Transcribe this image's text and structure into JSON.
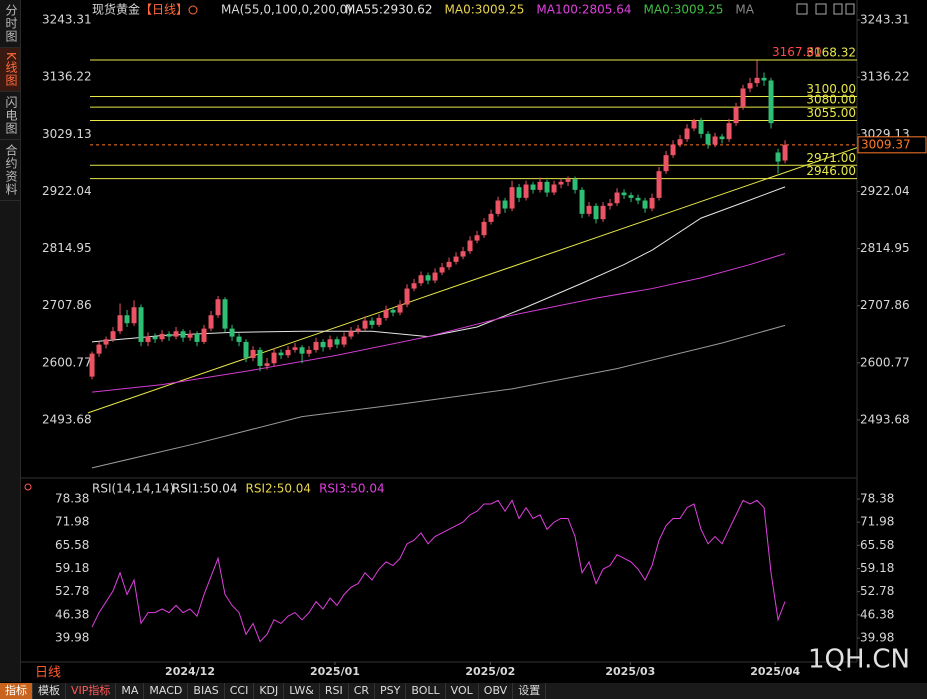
{
  "sidebar": [
    "分时图",
    "K线图",
    "闪电图",
    "合约资料"
  ],
  "toolbar": [
    "指标",
    "模板",
    "VIP指标",
    "MA",
    "MACD",
    "BIAS",
    "CCI",
    "KDJ",
    "LW&",
    "RSI",
    "CR",
    "PSY",
    "BOLL",
    "VOL",
    "OBV",
    "设置"
  ],
  "footer": {
    "period": "日线",
    "watermark": "1QH.CN"
  },
  "chart_data": [
    {
      "type": "candlestick",
      "title": "现货黄金",
      "period": "【日线】",
      "indicator": "MA(55,0,100,0,200,0)",
      "legend": [
        {
          "name": "MA55:2930.62",
          "color": "#e6e6e6"
        },
        {
          "name": "MA0:3009.25",
          "color": "#e8d44d"
        },
        {
          "name": "MA100:2805.64",
          "color": "#e040e0"
        },
        {
          "name": "MA0:3009.25",
          "color": "#3fbf3f"
        },
        {
          "name": "MA",
          "color": "#888888"
        }
      ],
      "up_color": "#ec5466",
      "down_color": "#2fbf74",
      "xlim": [
        -10.29,
        109.28
      ],
      "xticks": [
        {
          "value": 14.0,
          "label": "2024/12"
        },
        {
          "value": 34.7,
          "label": "2025/01"
        },
        {
          "value": 56.9,
          "label": "2025/02"
        },
        {
          "value": 76.9,
          "label": "2025/03"
        },
        {
          "value": 97.6,
          "label": "2025/04"
        }
      ],
      "ylim": [
        2390.6,
        3280.8
      ],
      "yticks": [
        3243.31,
        3136.22,
        3029.13,
        2922.04,
        2814.95,
        2707.86,
        2600.77,
        2493.68
      ],
      "candles": [
        [
          2575,
          2622,
          2570,
          2618
        ],
        [
          2618,
          2640,
          2612,
          2635
        ],
        [
          2635,
          2650,
          2628,
          2645
        ],
        [
          2645,
          2668,
          2640,
          2660
        ],
        [
          2660,
          2712,
          2655,
          2690
        ],
        [
          2690,
          2700,
          2668,
          2675
        ],
        [
          2675,
          2718,
          2670,
          2705
        ],
        [
          2705,
          2710,
          2632,
          2640
        ],
        [
          2640,
          2658,
          2632,
          2650
        ],
        [
          2650,
          2656,
          2638,
          2645
        ],
        [
          2645,
          2662,
          2640,
          2655
        ],
        [
          2655,
          2660,
          2642,
          2650
        ],
        [
          2650,
          2668,
          2645,
          2660
        ],
        [
          2660,
          2664,
          2640,
          2648
        ],
        [
          2648,
          2662,
          2642,
          2655
        ],
        [
          2655,
          2660,
          2632,
          2640
        ],
        [
          2640,
          2672,
          2636,
          2665
        ],
        [
          2665,
          2698,
          2660,
          2690
        ],
        [
          2690,
          2726,
          2685,
          2720
        ],
        [
          2720,
          2724,
          2658,
          2665
        ],
        [
          2665,
          2672,
          2642,
          2650
        ],
        [
          2650,
          2656,
          2632,
          2640
        ],
        [
          2640,
          2645,
          2602,
          2610
        ],
        [
          2610,
          2632,
          2604,
          2625
        ],
        [
          2625,
          2630,
          2585,
          2595
        ],
        [
          2595,
          2610,
          2588,
          2600
        ],
        [
          2600,
          2628,
          2594,
          2620
        ],
        [
          2620,
          2626,
          2608,
          2615
        ],
        [
          2615,
          2632,
          2610,
          2625
        ],
        [
          2625,
          2638,
          2620,
          2630
        ],
        [
          2630,
          2634,
          2600,
          2618
        ],
        [
          2618,
          2632,
          2612,
          2625
        ],
        [
          2625,
          2648,
          2620,
          2640
        ],
        [
          2640,
          2645,
          2622,
          2630
        ],
        [
          2630,
          2652,
          2625,
          2645
        ],
        [
          2645,
          2650,
          2628,
          2635
        ],
        [
          2635,
          2658,
          2630,
          2650
        ],
        [
          2650,
          2668,
          2645,
          2660
        ],
        [
          2660,
          2672,
          2655,
          2665
        ],
        [
          2665,
          2688,
          2660,
          2680
        ],
        [
          2680,
          2686,
          2665,
          2672
        ],
        [
          2672,
          2692,
          2668,
          2685
        ],
        [
          2685,
          2708,
          2680,
          2700
        ],
        [
          2700,
          2704,
          2688,
          2695
        ],
        [
          2695,
          2718,
          2690,
          2710
        ],
        [
          2710,
          2748,
          2705,
          2740
        ],
        [
          2740,
          2758,
          2735,
          2750
        ],
        [
          2750,
          2772,
          2745,
          2765
        ],
        [
          2765,
          2770,
          2748,
          2755
        ],
        [
          2755,
          2778,
          2750,
          2770
        ],
        [
          2770,
          2788,
          2765,
          2780
        ],
        [
          2780,
          2798,
          2775,
          2790
        ],
        [
          2790,
          2808,
          2785,
          2800
        ],
        [
          2800,
          2818,
          2795,
          2810
        ],
        [
          2810,
          2838,
          2805,
          2830
        ],
        [
          2830,
          2848,
          2825,
          2840
        ],
        [
          2840,
          2872,
          2835,
          2865
        ],
        [
          2865,
          2888,
          2860,
          2880
        ],
        [
          2880,
          2912,
          2875,
          2905
        ],
        [
          2905,
          2910,
          2882,
          2890
        ],
        [
          2890,
          2942,
          2885,
          2930
        ],
        [
          2930,
          2936,
          2902,
          2910
        ],
        [
          2910,
          2942,
          2905,
          2935
        ],
        [
          2935,
          2940,
          2918,
          2925
        ],
        [
          2925,
          2948,
          2920,
          2940
        ],
        [
          2940,
          2944,
          2912,
          2920
        ],
        [
          2920,
          2942,
          2915,
          2935
        ],
        [
          2935,
          2946,
          2928,
          2940
        ],
        [
          2940,
          2950,
          2932,
          2945
        ],
        [
          2945,
          2950,
          2918,
          2925
        ],
        [
          2925,
          2930,
          2872,
          2880
        ],
        [
          2880,
          2902,
          2875,
          2895
        ],
        [
          2895,
          2900,
          2862,
          2870
        ],
        [
          2870,
          2902,
          2865,
          2895
        ],
        [
          2895,
          2908,
          2888,
          2900
        ],
        [
          2900,
          2928,
          2895,
          2920
        ],
        [
          2920,
          2926,
          2908,
          2915
        ],
        [
          2915,
          2920,
          2902,
          2910
        ],
        [
          2910,
          2916,
          2898,
          2905
        ],
        [
          2905,
          2910,
          2882,
          2890
        ],
        [
          2890,
          2918,
          2885,
          2910
        ],
        [
          2910,
          2968,
          2905,
          2960
        ],
        [
          2960,
          2998,
          2955,
          2990
        ],
        [
          2990,
          3018,
          2985,
          3010
        ],
        [
          3010,
          3028,
          3005,
          3020
        ],
        [
          3020,
          3048,
          3015,
          3040
        ],
        [
          3040,
          3058,
          3035,
          3055
        ],
        [
          3055,
          3060,
          3022,
          3030
        ],
        [
          3030,
          3035,
          3002,
          3010
        ],
        [
          3010,
          3032,
          3005,
          3025
        ],
        [
          3025,
          3030,
          3012,
          3020
        ],
        [
          3020,
          3058,
          3015,
          3050
        ],
        [
          3050,
          3088,
          3045,
          3080
        ],
        [
          3080,
          3122,
          3075,
          3115
        ],
        [
          3115,
          3135,
          3108,
          3125
        ],
        [
          3125,
          3167.6,
          3118,
          3135
        ],
        [
          3135,
          3145,
          3120,
          3130
        ],
        [
          3130,
          3135,
          3040,
          3050
        ],
        [
          2995,
          3002,
          2956,
          2978
        ],
        [
          2980,
          3018,
          2975,
          3009.37
        ]
      ],
      "series": [
        {
          "color": "#e6e6e6",
          "x": [
            0,
            10,
            20,
            30,
            40,
            48,
            55,
            62,
            70,
            76,
            80,
            87,
            94,
            99
          ],
          "values": [
            2640,
            2652,
            2658,
            2660,
            2660,
            2650,
            2668,
            2705,
            2750,
            2785,
            2812,
            2872,
            2906,
            2930.62
          ]
        },
        {
          "color": "#d23cd2",
          "x": [
            0,
            10,
            22,
            35,
            48,
            60,
            72,
            80,
            87,
            94,
            99
          ],
          "values": [
            2546,
            2560,
            2585,
            2615,
            2650,
            2690,
            2722,
            2740,
            2760,
            2785,
            2805.64
          ]
        },
        {
          "color": "#9a9a9a",
          "x": [
            0,
            15,
            30,
            45,
            60,
            75,
            90,
            99
          ],
          "values": [
            2404,
            2450,
            2500,
            2525,
            2552,
            2590,
            2638,
            2671
          ]
        }
      ],
      "trendline": {
        "color": "#e8e84a",
        "x": [
          -0.58,
          109.28
        ],
        "values": [
          2507,
          3004
        ]
      },
      "levels": [
        {
          "value": 3168.32,
          "label": "3168.32"
        },
        {
          "value": 3100,
          "label": "3100.00"
        },
        {
          "value": 3080,
          "label": "3080.00"
        },
        {
          "value": 3055,
          "label": "3055.00"
        },
        {
          "value": 2971,
          "label": "2971.00"
        },
        {
          "value": 2946,
          "label": "2946.00"
        }
      ],
      "level_color": "#e8e84a",
      "high_mark": {
        "value": 3167.6,
        "label": "3167.60",
        "color": "#ff4a4a"
      },
      "last": {
        "value": 3009.37,
        "label": "3009.37",
        "color": "#ff7a2a"
      }
    },
    {
      "type": "line",
      "title": "RSI(14,14,14)",
      "legend": [
        {
          "name": "RSI1:50.04",
          "color": "#e6e6e6"
        },
        {
          "name": "RSI2:50.04",
          "color": "#e8d44d"
        },
        {
          "name": "RSI3:50.04",
          "color": "#e040e0"
        }
      ],
      "color": "#e040e0",
      "ylim": [
        33.9,
        83.63
      ],
      "yticks": [
        78.38,
        71.98,
        65.58,
        59.18,
        52.78,
        46.38,
        39.98
      ],
      "values": [
        43,
        47,
        50,
        53,
        58,
        52,
        56,
        44,
        47,
        47,
        48,
        47,
        49,
        47,
        48,
        46,
        52,
        57,
        62,
        52,
        49,
        47,
        41,
        44,
        39,
        41,
        45,
        44,
        46,
        47,
        45,
        47,
        50,
        48,
        51,
        49,
        52,
        54,
        55,
        58,
        56,
        59,
        61,
        60,
        62,
        66,
        67,
        69,
        66,
        68,
        69,
        70,
        71,
        72,
        74,
        75,
        77,
        77,
        78,
        75,
        78,
        73,
        76,
        73,
        74,
        70,
        72,
        73,
        73,
        68,
        58,
        61,
        55,
        59,
        60,
        63,
        62,
        61,
        59,
        56,
        60,
        67,
        71,
        73,
        73,
        76,
        77,
        70,
        66,
        68,
        66,
        70,
        74,
        78,
        77,
        78,
        76,
        58,
        45,
        50.04
      ]
    }
  ]
}
